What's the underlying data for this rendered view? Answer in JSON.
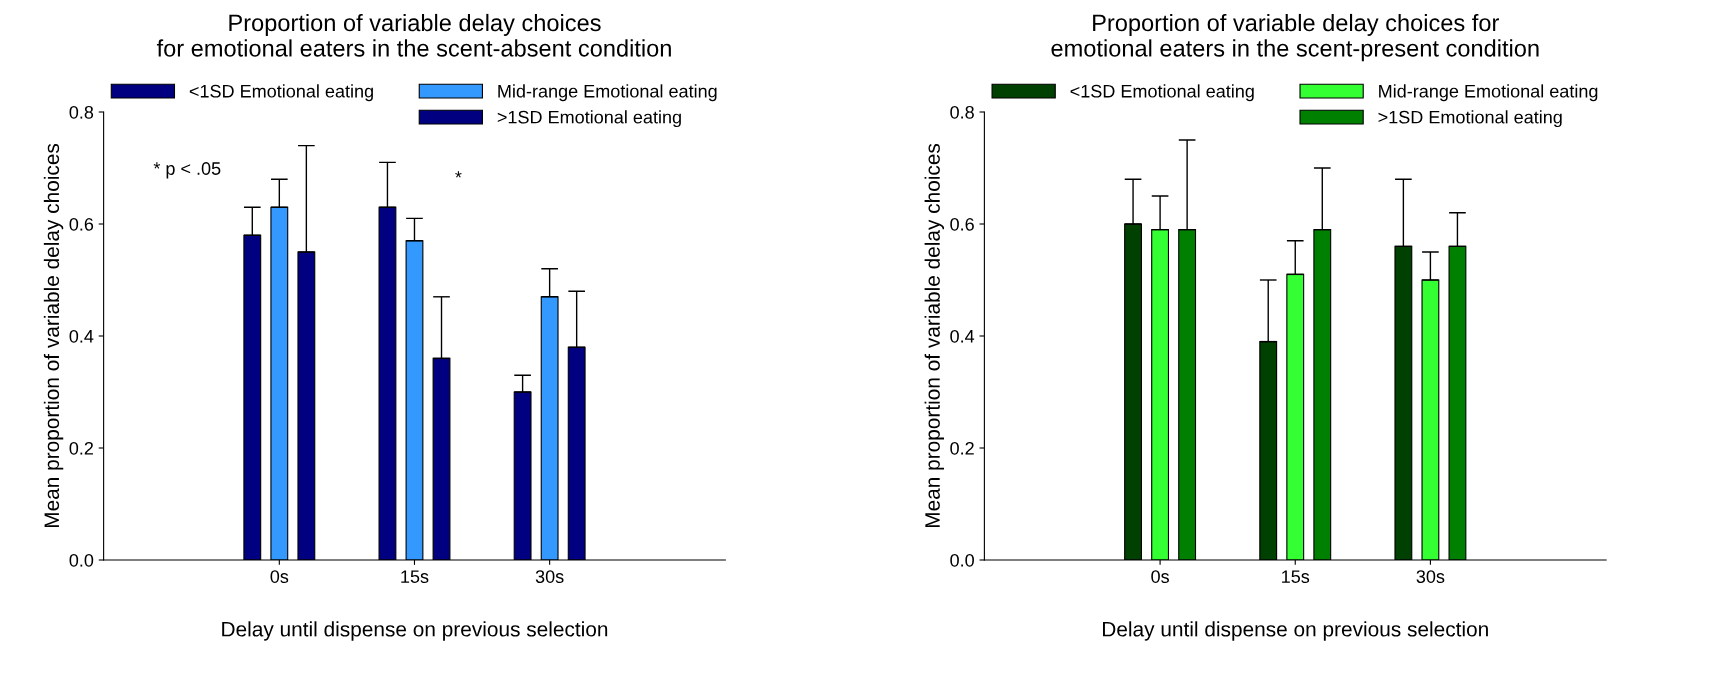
{
  "chart_data": [
    {
      "type": "bar",
      "title": "Proportion of variable delay choices\nfor emotional eaters in the scent-absent condition",
      "xlabel": "Delay until dispense on previous selection",
      "ylabel": "Mean proportion of variable delay choices",
      "categories": [
        "0s",
        "15s",
        "30s"
      ],
      "series": [
        {
          "name": "<1SD Emotional eating",
          "color": "#000080",
          "values": [
            0.58,
            0.63,
            0.3
          ],
          "errors": [
            [
              0.58,
              0.63
            ],
            [
              0.63,
              0.71
            ],
            [
              0.3,
              0.33
            ]
          ]
        },
        {
          "name": "Mid-range Emotional eating",
          "color": "#3399ff",
          "values": [
            0.63,
            0.57,
            0.47
          ],
          "errors": [
            [
              0.63,
              0.68
            ],
            [
              0.57,
              0.61
            ],
            [
              0.47,
              0.52
            ]
          ]
        },
        {
          "name": ">1SD Emotional eating",
          "color": "#000080",
          "values": [
            0.55,
            0.36,
            0.38
          ],
          "errors": [
            [
              0.55,
              0.74
            ],
            [
              0.36,
              0.47
            ],
            [
              0.38,
              0.48
            ]
          ]
        }
      ],
      "ylim": [
        0,
        0.8
      ],
      "yticks": [
        {
          "value": 0,
          "label": "0.0"
        },
        0.2,
        0.4,
        0.6,
        0.8
      ],
      "legend": "top",
      "grid": false,
      "annotations": [
        "* p < .05",
        "*"
      ]
    },
    {
      "type": "bar",
      "title": "Proportion of variable delay choices for\nemotional eaters in the scent-present condition",
      "xlabel": "Delay until dispense on previous selection",
      "ylabel": "Mean proportion of variable delay choices",
      "categories": [
        "0s",
        "15s",
        "30s"
      ],
      "series": [
        {
          "name": "<1SD Emotional eating",
          "color": "#004000",
          "values": [
            0.6,
            0.39,
            0.56
          ],
          "errors": [
            [
              0.6,
              0.68
            ],
            [
              0.39,
              0.5
            ],
            [
              0.56,
              0.68
            ]
          ]
        },
        {
          "name": "Mid-range Emotional eating",
          "color": "#33ff33",
          "values": [
            0.59,
            0.51,
            0.5
          ],
          "errors": [
            [
              0.59,
              0.65
            ],
            [
              0.51,
              0.57
            ],
            [
              0.5,
              0.55
            ]
          ]
        },
        {
          "name": ">1SD Emotional eating",
          "color": "#008000",
          "values": [
            0.59,
            0.59,
            0.56
          ],
          "errors": [
            [
              0.59,
              0.75
            ],
            [
              0.59,
              0.7
            ],
            [
              0.56,
              0.62
            ]
          ]
        }
      ],
      "ylim": [
        0,
        0.8
      ],
      "yticks": [
        {
          "value": 0,
          "label": "0.0"
        },
        0.2,
        0.4,
        0.6,
        0.8
      ],
      "legend": "top",
      "grid": false
    }
  ]
}
